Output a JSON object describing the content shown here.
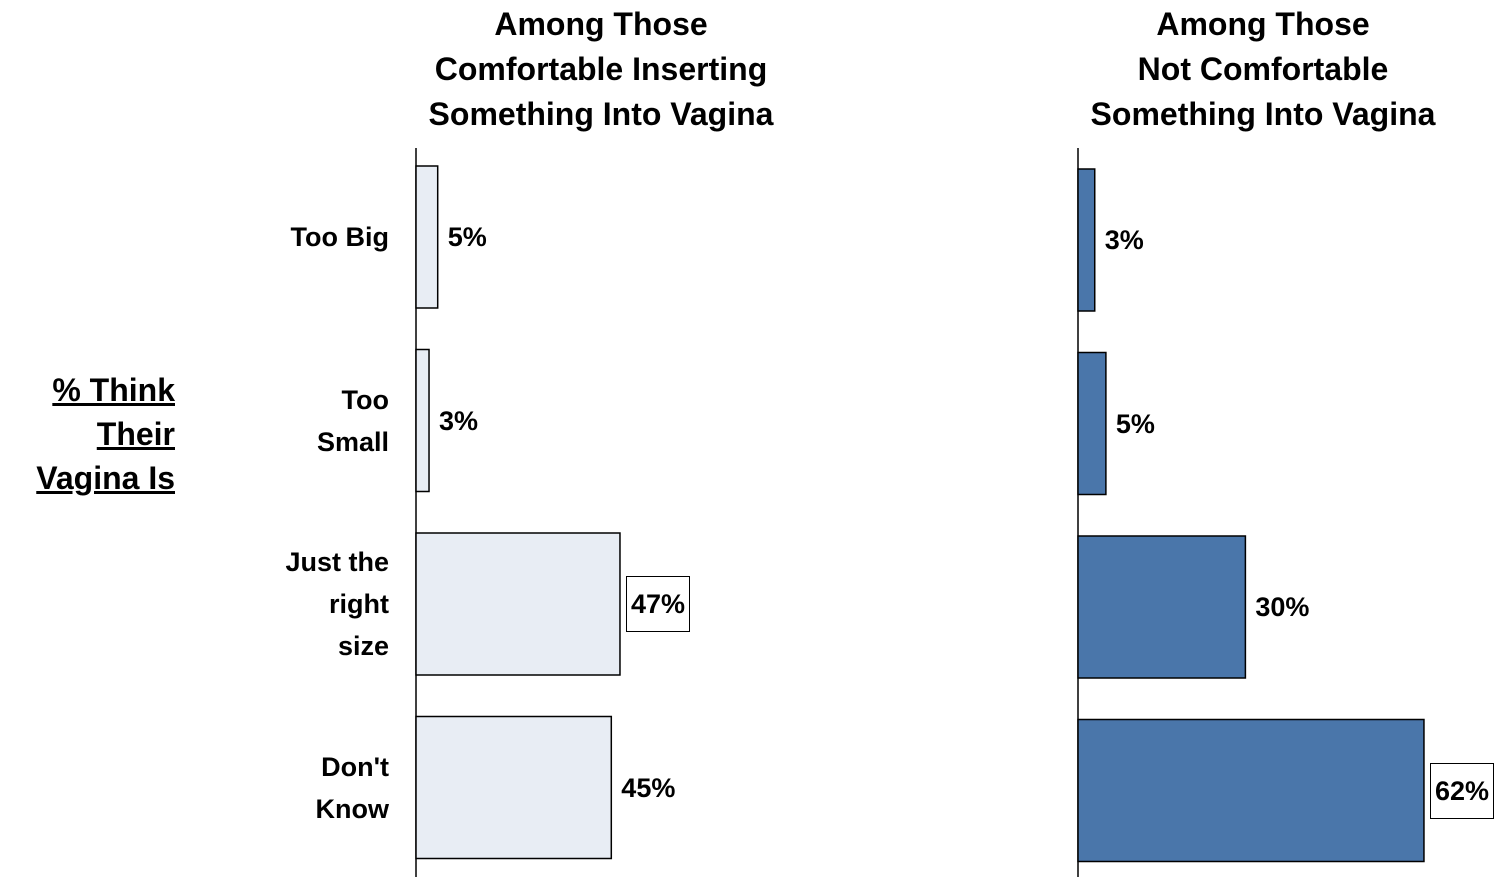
{
  "side_label": "% Think\nTheir\nVagina Is",
  "chart_data": [
    {
      "type": "bar",
      "orientation": "horizontal",
      "title": "Among Those\nComfortable Inserting\nSomething Into Vagina",
      "categories": [
        "Too Big",
        "Too\nSmall",
        "Just the\nright\nsize",
        "Don't\nKnow"
      ],
      "values": [
        5,
        3,
        47,
        45
      ],
      "value_labels": [
        "5%",
        "3%",
        "47%",
        "45%"
      ],
      "boxed_index": 2,
      "color": "#e8edf4",
      "xlim": [
        0,
        100
      ]
    },
    {
      "type": "bar",
      "orientation": "horizontal",
      "title": "Among Those\nNot Comfortable\nSomething Into Vagina",
      "values": [
        3,
        5,
        30,
        62
      ],
      "value_labels": [
        "3%",
        "5%",
        "30%",
        "62%"
      ],
      "boxed_index": 3,
      "color": "#4a76aa",
      "xlim": [
        0,
        100
      ]
    }
  ]
}
